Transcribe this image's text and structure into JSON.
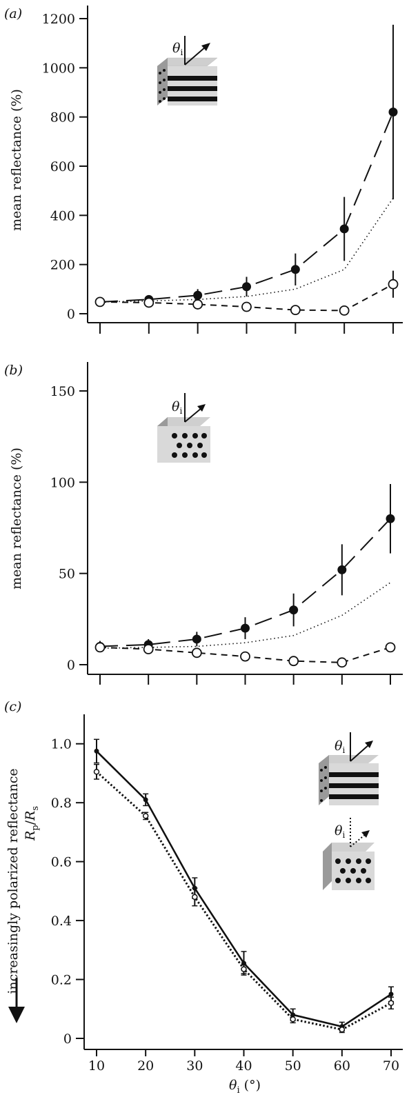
{
  "chart_data": [
    {
      "type": "line",
      "panel_label": "(a)",
      "ylabel": "mean reflectance (%)",
      "xlabel": "",
      "ylim": [
        0,
        1200
      ],
      "yticks": [
        0,
        200,
        400,
        600,
        800,
        1000,
        1200
      ],
      "xlim": [
        10,
        70
      ],
      "xticks": [
        10,
        20,
        30,
        40,
        50,
        60,
        70
      ],
      "x": [
        10,
        20,
        30,
        40,
        50,
        60,
        70
      ],
      "inset_label": "θi",
      "series": [
        {
          "style": "filled-long-dash",
          "values": [
            48,
            58,
            75,
            110,
            180,
            345,
            820
          ],
          "err_low": [
            5,
            12,
            25,
            40,
            65,
            130,
            355
          ],
          "err_high": [
            5,
            12,
            25,
            40,
            65,
            130,
            355
          ]
        },
        {
          "style": "dotted",
          "values": [
            48,
            52,
            58,
            70,
            100,
            180,
            470
          ]
        },
        {
          "style": "open-short-dash",
          "values": [
            48,
            45,
            38,
            28,
            15,
            13,
            120
          ],
          "err_low": [
            5,
            6,
            7,
            5,
            4,
            4,
            55
          ],
          "err_high": [
            5,
            6,
            7,
            5,
            4,
            4,
            55
          ]
        }
      ]
    },
    {
      "type": "line",
      "panel_label": "(b)",
      "ylabel": "mean reflectance (%)",
      "xlabel": "",
      "ylim": [
        0,
        150
      ],
      "yticks": [
        0,
        50,
        100,
        150
      ],
      "xlim": [
        10,
        70
      ],
      "xticks": [
        10,
        20,
        30,
        40,
        50,
        60,
        70
      ],
      "x": [
        10,
        20,
        30,
        40,
        50,
        60,
        70
      ],
      "inset_label": "θi",
      "series": [
        {
          "style": "filled-long-dash",
          "values": [
            10,
            11,
            14,
            20,
            30,
            52,
            80
          ],
          "err_low": [
            3,
            3,
            4,
            6,
            9,
            14,
            19
          ],
          "err_high": [
            3,
            3,
            4,
            6,
            9,
            14,
            19
          ]
        },
        {
          "style": "dotted",
          "values": [
            9,
            9.5,
            10,
            12,
            16,
            27,
            45
          ]
        },
        {
          "style": "open-short-dash",
          "values": [
            9.5,
            8.5,
            6.5,
            4.5,
            2,
            1.2,
            9.5
          ],
          "err_low": [
            2,
            1.5,
            1,
            0.8,
            0.5,
            0.4,
            1
          ],
          "err_high": [
            2,
            1.5,
            1,
            0.8,
            0.5,
            0.4,
            1
          ]
        }
      ]
    },
    {
      "type": "line",
      "panel_label": "(c)",
      "ylabel_line1": "increasingly polarized reflectance",
      "ylabel_r": "R",
      "ylabel_p": "p",
      "ylabel_slash": "/",
      "ylabel_s": "s",
      "xlabel_theta": "θ",
      "xlabel_sub": "i",
      "xlabel_unit": " (°)",
      "ylim": [
        0,
        1.1
      ],
      "yticks": [
        0,
        0.2,
        0.4,
        0.6,
        0.8,
        1.0
      ],
      "ytick_labels": [
        "0",
        "0.2",
        "0.4",
        "0.6",
        "0.8",
        "1.0"
      ],
      "xlim": [
        10,
        70
      ],
      "xticks": [
        10,
        20,
        30,
        40,
        50,
        60,
        70
      ],
      "x": [
        10,
        20,
        30,
        40,
        50,
        60,
        70
      ],
      "inset_label": "θi",
      "series": [
        {
          "style": "solid",
          "values": [
            0.975,
            0.81,
            0.51,
            0.255,
            0.08,
            0.04,
            0.15
          ],
          "err_low": [
            0.04,
            0.02,
            0.035,
            0.04,
            0.02,
            0.015,
            0.025
          ],
          "err_high": [
            0.04,
            0.02,
            0.035,
            0.04,
            0.02,
            0.015,
            0.025
          ]
        },
        {
          "style": "dotted",
          "values": [
            0.905,
            0.755,
            0.48,
            0.235,
            0.065,
            0.03,
            0.12
          ],
          "err_low": [
            0.025,
            0.012,
            0.03,
            0.015,
            0.012,
            0.01,
            0.02
          ],
          "err_high": [
            0.025,
            0.012,
            0.03,
            0.015,
            0.012,
            0.01,
            0.02
          ]
        }
      ]
    }
  ]
}
